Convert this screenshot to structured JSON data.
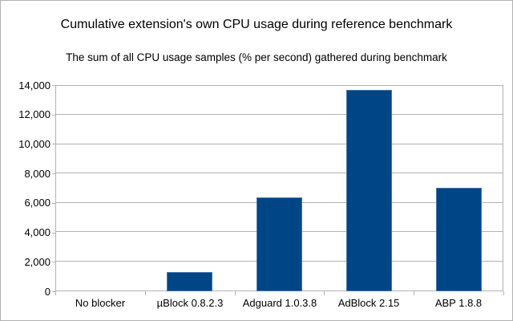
{
  "window": {
    "background": "#ffffff",
    "frame_border_color": "#b2b2b2"
  },
  "chart_data": {
    "type": "bar",
    "title": "Cumulative extension's own CPU usage during reference benchmark",
    "subtitle": "The sum of all CPU usage samples (% per second) gathered during benchmark",
    "categories": [
      "No blocker",
      "µBlock 0.8.2.3",
      "Adguard 1.0.3.8",
      "AdBlock 2.15",
      "ABP 1.8.8"
    ],
    "values": [
      0,
      1300,
      6400,
      13650,
      7050
    ],
    "xlabel": "",
    "ylabel": "",
    "ylim": [
      0,
      14000
    ],
    "ytick_step": 2000,
    "ytick_labels": [
      "0",
      "2,000",
      "4,000",
      "6,000",
      "8,000",
      "10,000",
      "12,000",
      "14,000"
    ],
    "grid": true,
    "legend": "none",
    "colors": {
      "bar_fill": "#004586",
      "bar_border": "#4677ab",
      "gridline": "#b3b3b3",
      "axis_line": "#b3b3b3",
      "text": "#000000"
    }
  }
}
